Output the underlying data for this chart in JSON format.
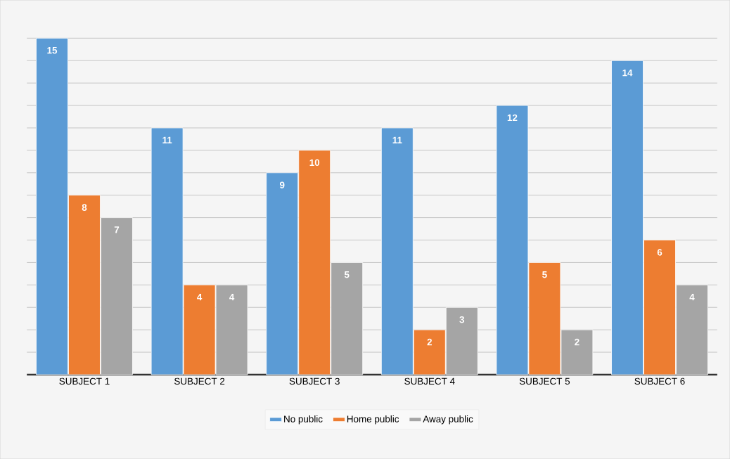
{
  "chart_data": {
    "type": "bar",
    "categories": [
      "SUBJECT 1",
      "SUBJECT 2",
      "SUBJECT 3",
      "SUBJECT 4",
      "SUBJECT 5",
      "SUBJECT 6"
    ],
    "series": [
      {
        "name": "No public",
        "color": "#5b9bd5",
        "values": [
          15,
          11,
          9,
          11,
          12,
          14
        ]
      },
      {
        "name": "Home public",
        "color": "#ed7d31",
        "values": [
          8,
          4,
          10,
          2,
          5,
          6
        ]
      },
      {
        "name": "Away public",
        "color": "#a5a5a5",
        "values": [
          7,
          4,
          5,
          3,
          2,
          4
        ]
      }
    ],
    "tick_labels": "x",
    "grid": "y",
    "legend": "bottom",
    "data_labels": true
  }
}
